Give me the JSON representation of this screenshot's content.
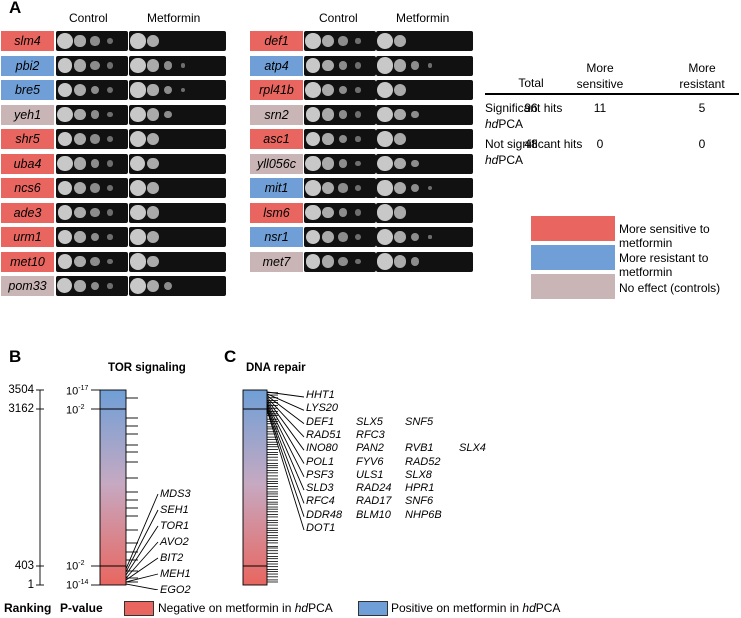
{
  "panels": {
    "a": "A",
    "b": "B",
    "c": "C"
  },
  "headers": {
    "control": "Control",
    "metformin": "Metformin"
  },
  "colors": {
    "sensitive": "#e8665f",
    "resistant": "#6f9fd6",
    "none": "#c9b5b5"
  },
  "left_genes": [
    {
      "name": "slm4",
      "effect": "sensitive"
    },
    {
      "name": "pbi2",
      "effect": "resistant"
    },
    {
      "name": "bre5",
      "effect": "resistant"
    },
    {
      "name": "yeh1",
      "effect": "none"
    },
    {
      "name": "shr5",
      "effect": "sensitive"
    },
    {
      "name": "uba4",
      "effect": "sensitive"
    },
    {
      "name": "ncs6",
      "effect": "sensitive"
    },
    {
      "name": "ade3",
      "effect": "sensitive"
    },
    {
      "name": "urm1",
      "effect": "sensitive"
    },
    {
      "name": "met10",
      "effect": "sensitive"
    },
    {
      "name": "pom33",
      "effect": "none"
    }
  ],
  "right_genes": [
    {
      "name": "def1",
      "effect": "sensitive"
    },
    {
      "name": "atp4",
      "effect": "resistant"
    },
    {
      "name": "rpl41b",
      "effect": "sensitive"
    },
    {
      "name": "srn2",
      "effect": "none"
    },
    {
      "name": "asc1",
      "effect": "sensitive"
    },
    {
      "name": "yll056c",
      "effect": "none"
    },
    {
      "name": "mit1",
      "effect": "resistant"
    },
    {
      "name": "lsm6",
      "effect": "sensitive"
    },
    {
      "name": "nsr1",
      "effect": "resistant"
    },
    {
      "name": "met7",
      "effect": "none"
    }
  ],
  "hits_table": {
    "headers": [
      "Total",
      "More\nsensitive",
      "More\nresistant"
    ],
    "rows": [
      {
        "label": "Significant hits",
        "label_ital": "hd",
        "label_end": "PCA",
        "values": [
          "96",
          "11",
          "5"
        ]
      },
      {
        "label": "Not significant hits",
        "label_ital": "hd",
        "label_end": "PCA",
        "values": [
          "48",
          "0",
          "0"
        ]
      }
    ]
  },
  "legend": {
    "sensitive": "More sensitive to metformin",
    "resistant": "More resistant to metformin",
    "none": "No effect (controls)"
  },
  "panel_b": {
    "title": "TOR signaling",
    "ranks": [
      "3504",
      "3162",
      "403",
      "1"
    ],
    "pvals": [
      {
        "base": "10",
        "exp": "-17"
      },
      {
        "base": "10",
        "exp": "-2"
      },
      {
        "base": "10",
        "exp": "-2"
      },
      {
        "base": "10",
        "exp": "-14"
      }
    ],
    "genes": [
      "MDS3",
      "SEH1",
      "TOR1",
      "AVO2",
      "BIT2",
      "MEH1",
      "EGO2"
    ]
  },
  "panel_c": {
    "title": "DNA repair",
    "genes": [
      [
        "HHT1"
      ],
      [
        "LYS20"
      ],
      [
        "DEF1",
        "SLX5",
        "SNF5"
      ],
      [
        "RAD51",
        "RFC3"
      ],
      [
        "INO80",
        "PAN2",
        "RVB1",
        "SLX4"
      ],
      [
        "POL1",
        "FYV6",
        "RAD52"
      ],
      [
        "PSF3",
        "ULS1",
        "SLX8"
      ],
      [
        "SLD3",
        "RAD24",
        "HPR1"
      ],
      [
        "RFC4",
        "RAD17",
        "SNF6"
      ],
      [
        "DDR48",
        "BLM10",
        "NHP6B"
      ],
      [
        "DOT1"
      ]
    ]
  },
  "bottom": {
    "ranking": "Ranking",
    "pvalue": "P-value",
    "neg_label": "Negative on metformin in ",
    "pos_label": "Positive on metformin in ",
    "hd": "hd",
    "pca": "PCA"
  }
}
